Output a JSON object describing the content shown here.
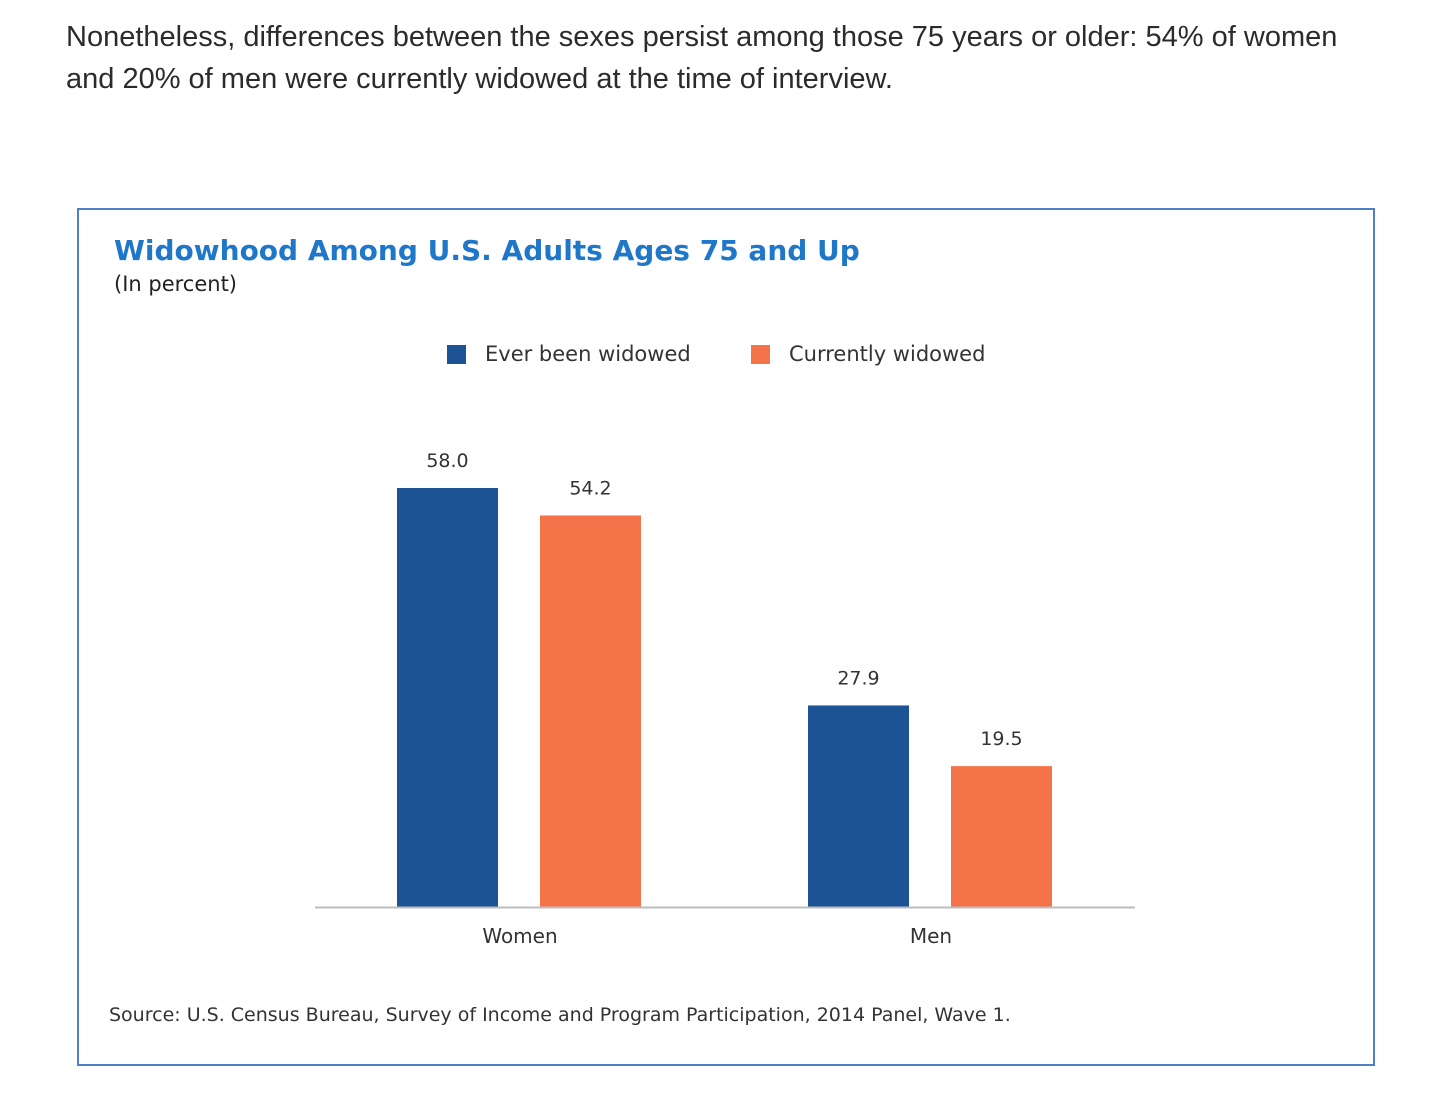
{
  "article": {
    "paragraph": "Nonetheless, differences between the sexes persist among those 75 years or older: 54% of women and 20% of men were currently widowed at the time of interview."
  },
  "chart_data": {
    "type": "bar",
    "title": "Widowhood Among U.S. Adults Ages 75 and Up",
    "subtitle": "(In percent)",
    "categories": [
      "Women",
      "Men"
    ],
    "series": [
      {
        "name": "Ever been widowed",
        "values": [
          58.0,
          27.9
        ],
        "labels": [
          "58.0",
          "27.9"
        ],
        "color": "#1b5394"
      },
      {
        "name": "Currently widowed",
        "values": [
          54.2,
          19.5
        ],
        "labels": [
          "54.2",
          "19.5"
        ],
        "color": "#f47348"
      }
    ],
    "xlabel": "",
    "ylabel": "",
    "ylim": [
      0,
      58
    ],
    "grid": false,
    "legend_position": "top-center",
    "source": "Source: U.S. Census Bureau, Survey of Income and Program Participation, 2014 Panel, Wave 1."
  }
}
